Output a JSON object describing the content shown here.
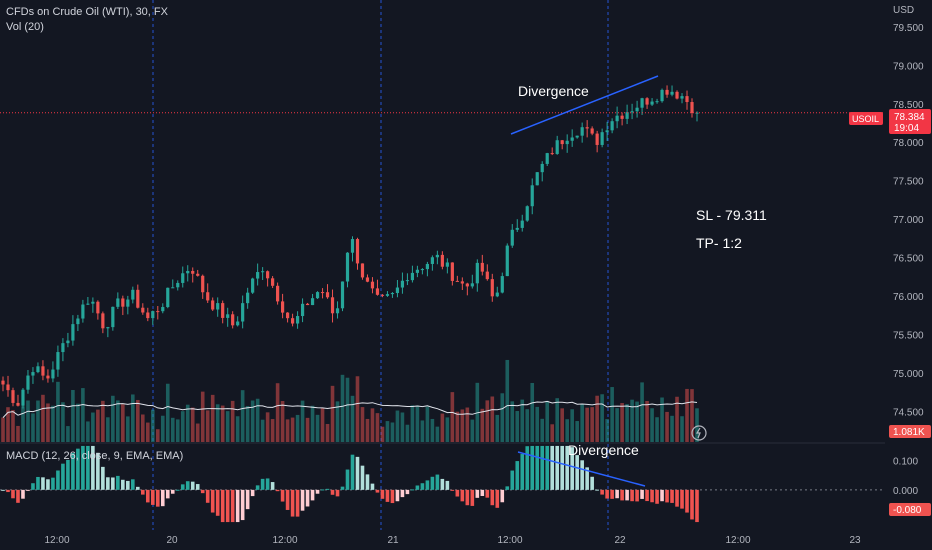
{
  "header": {
    "symbol_line": "CFDs on Crude Oil (WTI), 30, FX",
    "volume_line": "Vol (20)",
    "currency": "USD"
  },
  "price_axis": {
    "ticks": [
      "79.500",
      "79.000",
      "78.500",
      "78.000",
      "77.500",
      "77.000",
      "76.500",
      "76.000",
      "75.500",
      "75.000",
      "74.500"
    ],
    "tick_values": [
      79.5,
      79.0,
      78.5,
      78.0,
      77.5,
      77.0,
      76.5,
      76.0,
      75.5,
      75.0,
      74.5
    ],
    "range": [
      74.1,
      79.85
    ]
  },
  "macd_axis": {
    "ticks": [
      "0.100",
      "0.000"
    ],
    "tick_values": [
      0.1,
      0.0
    ],
    "range": [
      -0.12,
      0.16
    ]
  },
  "time_axis": {
    "labels": [
      "12:00",
      "20",
      "12:00",
      "21",
      "12:00",
      "22",
      "12:00",
      "23"
    ]
  },
  "badges": {
    "symbol": "USOIL",
    "last_price": "78.384",
    "countdown": "19:04",
    "volume": "1.081K",
    "macd_value": "-0.080"
  },
  "annotations": {
    "divergence_top": "Divergence",
    "divergence_bottom": "Divergence",
    "stop_loss": "SL - 79.311",
    "take_profit": "TP- 1:2"
  },
  "macd_title": "MACD (12, 26, close, 9, EMA, EMA)",
  "colors": {
    "background": "#131722",
    "up": "#26a69a",
    "down": "#ef5350",
    "text": "#d1d4dc",
    "axis_text": "#b2b5be",
    "separator": "#2962ff",
    "price_line": "#f23645",
    "trendline": "#2962ff"
  },
  "chart_data": {
    "type": "candlestick",
    "series": [
      {
        "name": "USOIL",
        "close_path": [
          74.85,
          74.6,
          75.1,
          74.9,
          75.3,
          75.7,
          76.0,
          75.6,
          75.9,
          76.0,
          75.7,
          75.9,
          76.2,
          76.4,
          76.0,
          75.8,
          75.6,
          76.1,
          76.4,
          76.0,
          75.6,
          75.9,
          76.1,
          75.7,
          76.8,
          76.2,
          75.9,
          76.0,
          76.3,
          76.4,
          76.5,
          76.3,
          76.1,
          76.4,
          75.9,
          76.7,
          77.1,
          77.6,
          77.9,
          78.1,
          78.2,
          78.0,
          78.3,
          78.4,
          78.5,
          78.6,
          78.7,
          78.6,
          78.4
        ]
      },
      {
        "name": "Vol (20)",
        "last": 1081
      },
      {
        "name": "MACD (12, 26, close, 9, EMA, EMA)",
        "last": -0.08
      }
    ]
  }
}
